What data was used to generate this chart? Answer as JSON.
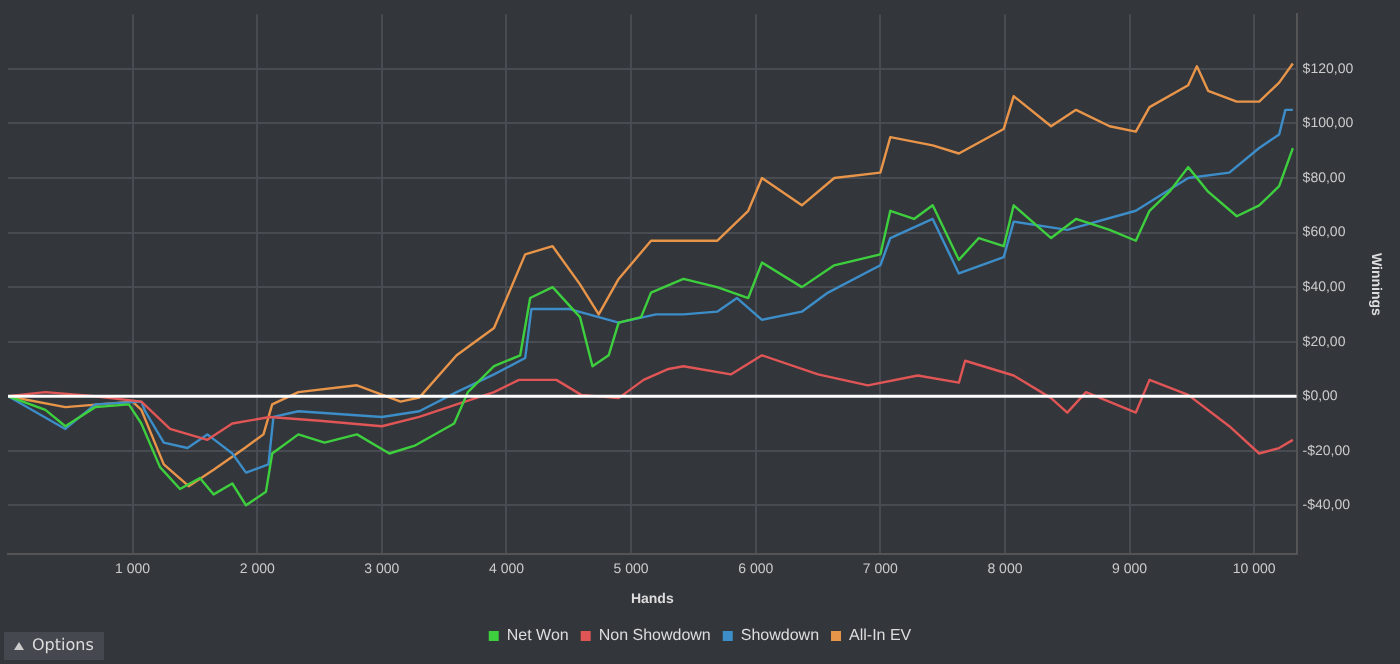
{
  "chart_data": {
    "type": "line",
    "xlabel": "Hands",
    "ylabel": "Winnings",
    "annotations": [
      "Options"
    ],
    "xlim": [
      0,
      10340
    ],
    "ylim": [
      -58,
      140
    ],
    "xticks": [
      {
        "value": 1000,
        "label": "1 000"
      },
      {
        "value": 2000,
        "label": "2 000"
      },
      {
        "value": 3000,
        "label": "3 000"
      },
      {
        "value": 4000,
        "label": "4 000"
      },
      {
        "value": 5000,
        "label": "5 000"
      },
      {
        "value": 6000,
        "label": "6 000"
      },
      {
        "value": 7000,
        "label": "7 000"
      },
      {
        "value": 8000,
        "label": "8 000"
      },
      {
        "value": 9000,
        "label": "9 000"
      },
      {
        "value": 10000,
        "label": "10 000"
      }
    ],
    "yticks": [
      {
        "value": -40,
        "label": "-$40,00"
      },
      {
        "value": -20,
        "label": "-$20,00"
      },
      {
        "value": 0,
        "label": "$0,00"
      },
      {
        "value": 20,
        "label": "$20,00"
      },
      {
        "value": 40,
        "label": "$40,00"
      },
      {
        "value": 60,
        "label": "$60,00"
      },
      {
        "value": 80,
        "label": "$80,00"
      },
      {
        "value": 100,
        "label": "$100,00"
      },
      {
        "value": 120,
        "label": "$120,00"
      }
    ],
    "grid": true,
    "legend": "bottom",
    "marker": "none",
    "line_style": "solid",
    "ref_lines": [
      {
        "axis": "y",
        "value": 0,
        "color": "#ffffff"
      }
    ],
    "series": [
      {
        "name": "Net Won",
        "color": "#3ecf3e",
        "x": [
          0,
          300,
          460,
          700,
          970,
          1070,
          1220,
          1380,
          1540,
          1650,
          1800,
          1910,
          2070,
          2120,
          2330,
          2540,
          2800,
          3060,
          3270,
          3580,
          3690,
          3900,
          4110,
          4190,
          4370,
          4590,
          4690,
          4820,
          4900,
          5080,
          5160,
          5420,
          5690,
          5940,
          6050,
          6370,
          6630,
          7000,
          7080,
          7270,
          7420,
          7630,
          7790,
          7990,
          8070,
          8370,
          8570,
          8840,
          9050,
          9160,
          9320,
          9470,
          9630,
          9860,
          10040,
          10200,
          10310
        ],
        "values": [
          0,
          -5,
          -11,
          -4,
          -3,
          -10,
          -26,
          -34,
          -30,
          -36,
          -32,
          -40,
          -35,
          -21,
          -14,
          -17,
          -14,
          -21,
          -18,
          -10,
          1.5,
          11,
          15,
          36,
          40,
          29,
          11,
          15,
          27,
          29,
          38,
          43,
          40,
          36,
          49,
          40,
          48,
          52,
          68,
          65,
          70,
          50,
          58,
          55,
          70,
          58,
          65,
          61,
          57,
          68,
          75,
          84,
          75,
          66,
          70,
          77,
          91
        ]
      },
      {
        "name": "Non Showdown",
        "color": "#e05555",
        "x": [
          0,
          300,
          700,
          1070,
          1300,
          1600,
          1800,
          2100,
          2500,
          3000,
          3300,
          3600,
          3900,
          4100,
          4400,
          4600,
          4900,
          5100,
          5300,
          5420,
          5800,
          6050,
          6500,
          6900,
          7300,
          7630,
          7680,
          8070,
          8370,
          8500,
          8650,
          9050,
          9160,
          9470,
          9800,
          10040,
          10200,
          10310
        ],
        "values": [
          0,
          1.5,
          0,
          -2,
          -12,
          -16,
          -10,
          -7.6,
          -9,
          -11,
          -7.6,
          -3,
          1.5,
          6,
          6,
          0.5,
          -0.7,
          6,
          10,
          11,
          8,
          15,
          8,
          4,
          7.6,
          5,
          13,
          7.6,
          -0.7,
          -6,
          1.5,
          -6,
          6,
          0.5,
          -11,
          -21,
          -19,
          -16
        ]
      },
      {
        "name": "Showdown",
        "color": "#3c8dc8",
        "x": [
          0,
          460,
          700,
          1070,
          1100,
          1250,
          1440,
          1600,
          1800,
          1910,
          2090,
          2130,
          2330,
          3000,
          3300,
          3600,
          3900,
          4150,
          4200,
          4500,
          4900,
          5200,
          5420,
          5690,
          5850,
          6050,
          6370,
          6580,
          7000,
          7080,
          7420,
          7630,
          7990,
          8070,
          8500,
          9050,
          9470,
          9800,
          10040,
          10200,
          10250,
          10310
        ],
        "values": [
          0,
          -12,
          -3,
          -2,
          -5.5,
          -17,
          -19,
          -14,
          -21,
          -28,
          -25,
          -7.6,
          -5.5,
          -7.6,
          -5.5,
          1.5,
          8,
          14,
          32,
          32,
          27,
          30,
          30,
          31,
          36,
          28,
          31,
          38,
          48,
          58,
          65,
          45,
          51,
          64,
          61,
          68,
          80,
          82,
          91,
          96,
          105,
          105
        ]
      },
      {
        "name": "All-In EV",
        "color": "#e8954a",
        "x": [
          0,
          460,
          1000,
          1070,
          1250,
          1450,
          1650,
          1900,
          2050,
          2120,
          2330,
          2800,
          3150,
          3300,
          3600,
          3900,
          4150,
          4370,
          4590,
          4740,
          4900,
          5160,
          5420,
          5690,
          5940,
          6050,
          6370,
          6630,
          7000,
          7080,
          7420,
          7630,
          7990,
          8070,
          8370,
          8570,
          8840,
          9050,
          9160,
          9470,
          9540,
          9630,
          9860,
          10040,
          10200,
          10310
        ],
        "values": [
          0,
          -4,
          -2,
          -5,
          -25,
          -33,
          -27,
          -19,
          -14,
          -3,
          1.5,
          4,
          -2,
          -0.5,
          15,
          25,
          52,
          55,
          41,
          30,
          43,
          57,
          57,
          57,
          68,
          80,
          70,
          80,
          82,
          95,
          92,
          89,
          98,
          110,
          99,
          105,
          99,
          97,
          106,
          114,
          121,
          112,
          108,
          108,
          115,
          122
        ]
      }
    ]
  }
}
